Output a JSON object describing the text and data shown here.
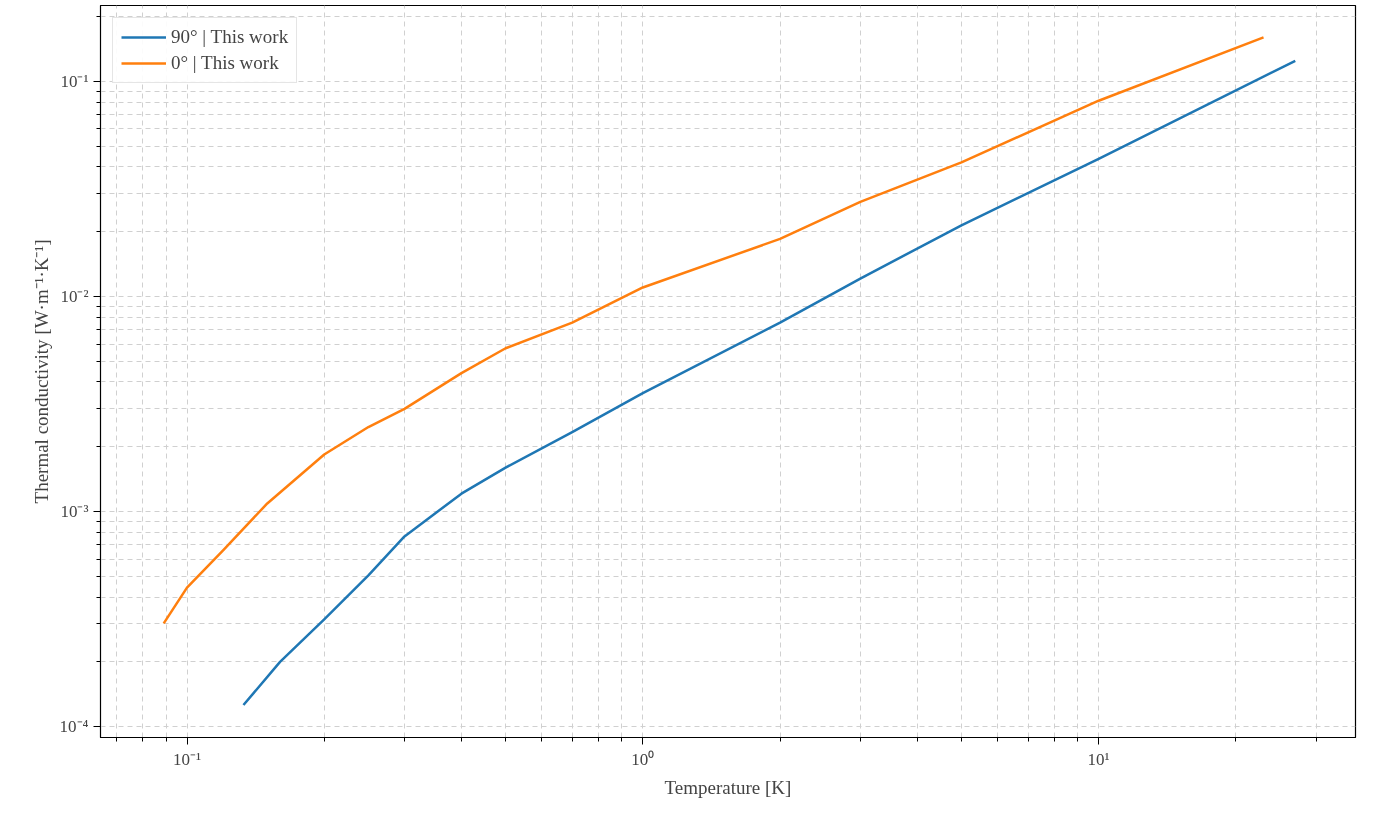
{
  "chart_data": {
    "type": "line",
    "xlabel": "Temperature [K]",
    "ylabel": "Thermal conductivity [W·m⁻¹·K⁻¹]",
    "log": "xy",
    "grid": true,
    "legend": "top left",
    "line_style": "solid",
    "marker": "none",
    "xlim": [
      0.0646,
      36.6
    ],
    "ylim": [
      8.9e-05,
      0.225
    ],
    "xticks": [
      {
        "value": 0.07,
        "label": null
      },
      {
        "value": 0.08,
        "label": null
      },
      {
        "value": 0.09,
        "label": null
      },
      {
        "value": 0.1,
        "label": "10⁻¹"
      },
      {
        "value": 0.2,
        "label": null
      },
      {
        "value": 0.3,
        "label": null
      },
      {
        "value": 0.4,
        "label": null
      },
      {
        "value": 0.5,
        "label": null
      },
      {
        "value": 0.6,
        "label": null
      },
      {
        "value": 0.7,
        "label": null
      },
      {
        "value": 0.8,
        "label": null
      },
      {
        "value": 0.9,
        "label": null
      },
      {
        "value": 1,
        "label": "10⁰"
      },
      {
        "value": 2,
        "label": null
      },
      {
        "value": 3,
        "label": null
      },
      {
        "value": 4,
        "label": null
      },
      {
        "value": 5,
        "label": null
      },
      {
        "value": 6,
        "label": null
      },
      {
        "value": 7,
        "label": null
      },
      {
        "value": 8,
        "label": null
      },
      {
        "value": 9,
        "label": null
      },
      {
        "value": 10,
        "label": "10¹"
      },
      {
        "value": 20,
        "label": null
      },
      {
        "value": 30,
        "label": null
      }
    ],
    "yticks": [
      {
        "value": 0.0001,
        "label": "10⁻⁴"
      },
      {
        "value": 0.0002,
        "label": null
      },
      {
        "value": 0.0003,
        "label": null
      },
      {
        "value": 0.0004,
        "label": null
      },
      {
        "value": 0.0005,
        "label": null
      },
      {
        "value": 0.0006,
        "label": null
      },
      {
        "value": 0.0007,
        "label": null
      },
      {
        "value": 0.0008,
        "label": null
      },
      {
        "value": 0.0009,
        "label": null
      },
      {
        "value": 0.001,
        "label": "10⁻³"
      },
      {
        "value": 0.002,
        "label": null
      },
      {
        "value": 0.003,
        "label": null
      },
      {
        "value": 0.004,
        "label": null
      },
      {
        "value": 0.005,
        "label": null
      },
      {
        "value": 0.006,
        "label": null
      },
      {
        "value": 0.007,
        "label": null
      },
      {
        "value": 0.008,
        "label": null
      },
      {
        "value": 0.009,
        "label": null
      },
      {
        "value": 0.01,
        "label": "10⁻²"
      },
      {
        "value": 0.02,
        "label": null
      },
      {
        "value": 0.03,
        "label": null
      },
      {
        "value": 0.04,
        "label": null
      },
      {
        "value": 0.05,
        "label": null
      },
      {
        "value": 0.06,
        "label": null
      },
      {
        "value": 0.07,
        "label": null
      },
      {
        "value": 0.08,
        "label": null
      },
      {
        "value": 0.09,
        "label": null
      },
      {
        "value": 0.1,
        "label": "10⁻¹"
      },
      {
        "value": 0.2,
        "label": null
      }
    ],
    "series": [
      {
        "name": "90° | This work",
        "color": "#1f77b4",
        "x": [
          0.133,
          0.16,
          0.2,
          0.25,
          0.3,
          0.4,
          0.5,
          0.7,
          1,
          2,
          3,
          5,
          10,
          27
        ],
        "values": [
          0.000126,
          0.0002,
          0.000315,
          0.000505,
          0.000766,
          0.00121,
          0.0016,
          0.00234,
          0.00355,
          0.00755,
          0.0121,
          0.0214,
          0.0436,
          0.1245
        ]
      },
      {
        "name": "0° | This work",
        "color": "#ff7f0e",
        "x": [
          0.0889,
          0.1,
          0.12,
          0.15,
          0.2,
          0.25,
          0.3,
          0.4,
          0.5,
          0.7,
          1,
          2,
          3,
          5,
          10,
          23
        ],
        "values": [
          0.000302,
          0.000443,
          0.00066,
          0.00109,
          0.00184,
          0.00247,
          0.003,
          0.0044,
          0.00574,
          0.00755,
          0.011,
          0.0185,
          0.0275,
          0.042,
          0.0812,
          0.16
        ]
      }
    ]
  }
}
